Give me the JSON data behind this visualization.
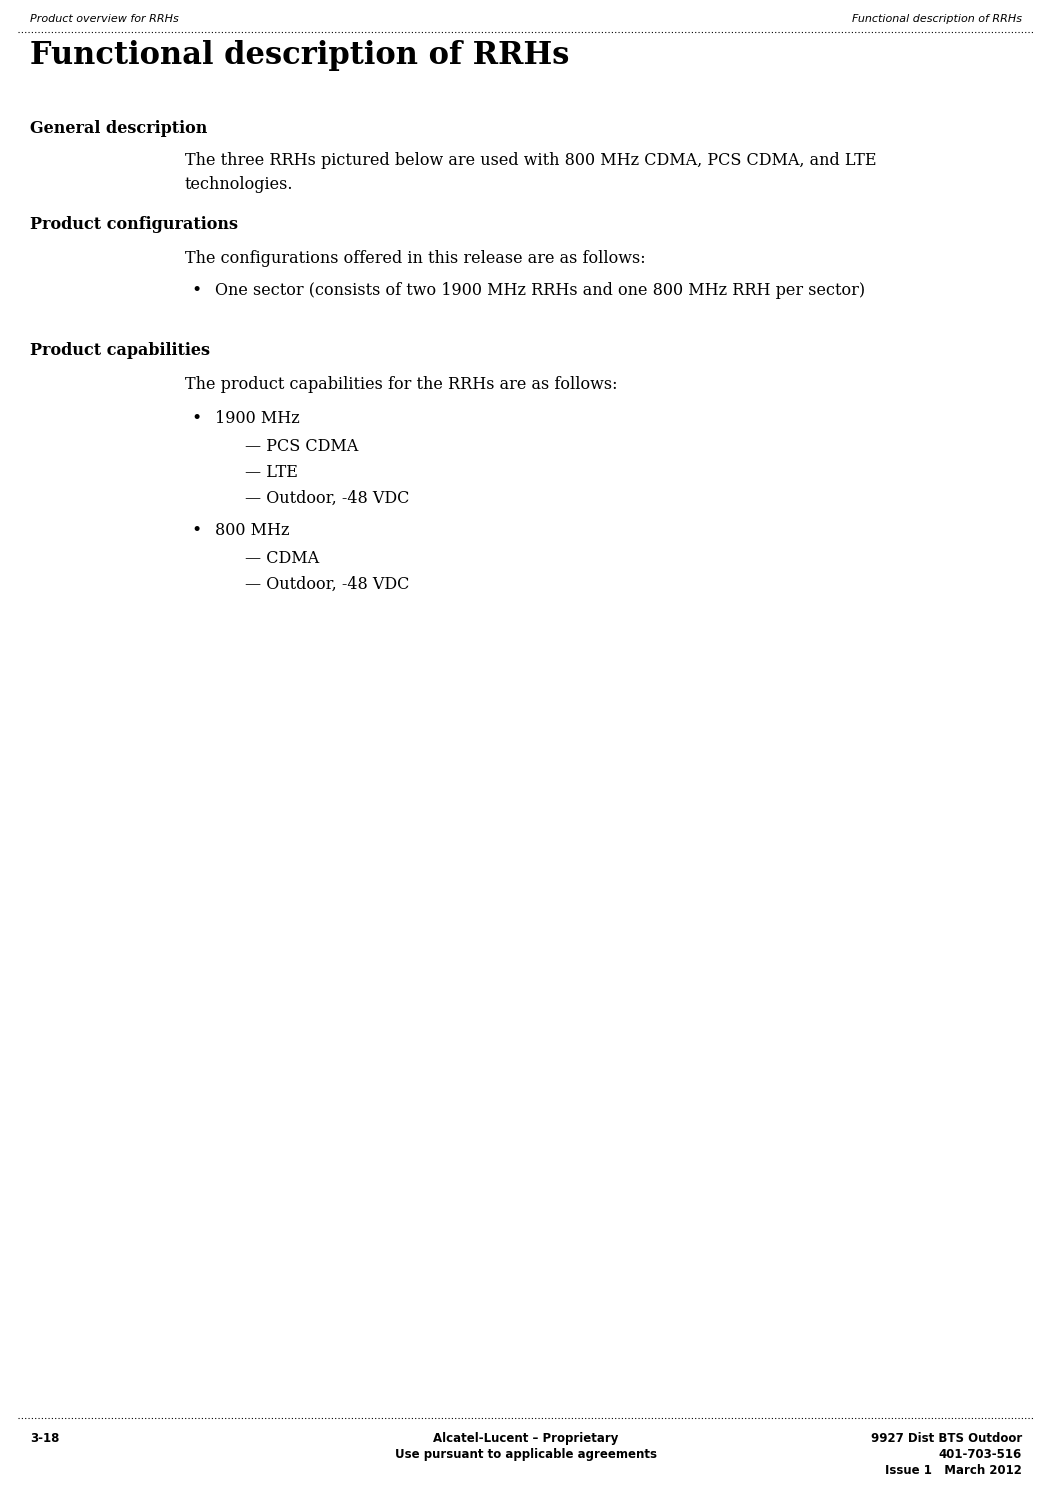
{
  "header_left": "Product overview for RRHs",
  "header_right": "Functional description of RRHs",
  "title": "Functional description of RRHs",
  "section1_heading": "General description",
  "section1_body_line1": "The three RRHs pictured below are used with 800 MHz CDMA, PCS CDMA, and LTE",
  "section1_body_line2": "technologies.",
  "section2_heading": "Product configurations",
  "section2_intro": "The configurations offered in this release are as follows:",
  "section2_bullet": "One sector (consists of two 1900 MHz RRHs and one 800 MHz RRH per sector)",
  "section3_heading": "Product capabilities",
  "section3_intro": "The product capabilities for the RRHs are as follows:",
  "section3_items": [
    {
      "bullet": "1900 MHz",
      "subitems": [
        "— PCS CDMA",
        "— LTE",
        "— Outdoor, -48 VDC"
      ]
    },
    {
      "bullet": "800 MHz",
      "subitems": [
        "— CDMA",
        "— Outdoor, -48 VDC"
      ]
    }
  ],
  "footer_left": "3-18",
  "footer_center_line1": "Alcatel-Lucent – Proprietary",
  "footer_center_line2": "Use pursuant to applicable agreements",
  "footer_right_line1": "9927 Dist BTS Outdoor",
  "footer_right_line2": "401-703-516",
  "footer_right_line3": "Issue 1   March 2012",
  "bg_color": "#ffffff",
  "text_color": "#000000",
  "header_fontsize": 8.0,
  "title_fontsize": 22,
  "heading_fontsize": 11.5,
  "body_fontsize": 11.5,
  "footer_fontsize": 8.5,
  "header_font": "DejaVu Sans",
  "body_font": "DejaVu Serif"
}
